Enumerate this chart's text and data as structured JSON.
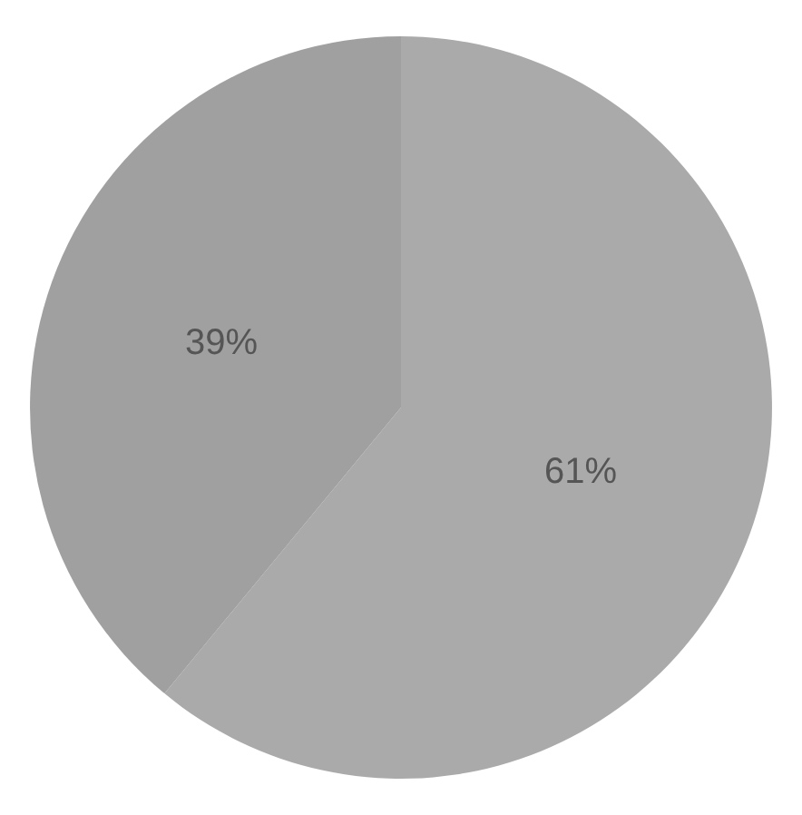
{
  "chart_data": {
    "type": "pie",
    "categories": [
      null,
      null
    ],
    "values": [
      61,
      39
    ],
    "colors": [
      "#aaaaaa",
      "#a0a0a0"
    ],
    "value_labels": [
      "61%",
      "39%"
    ]
  }
}
